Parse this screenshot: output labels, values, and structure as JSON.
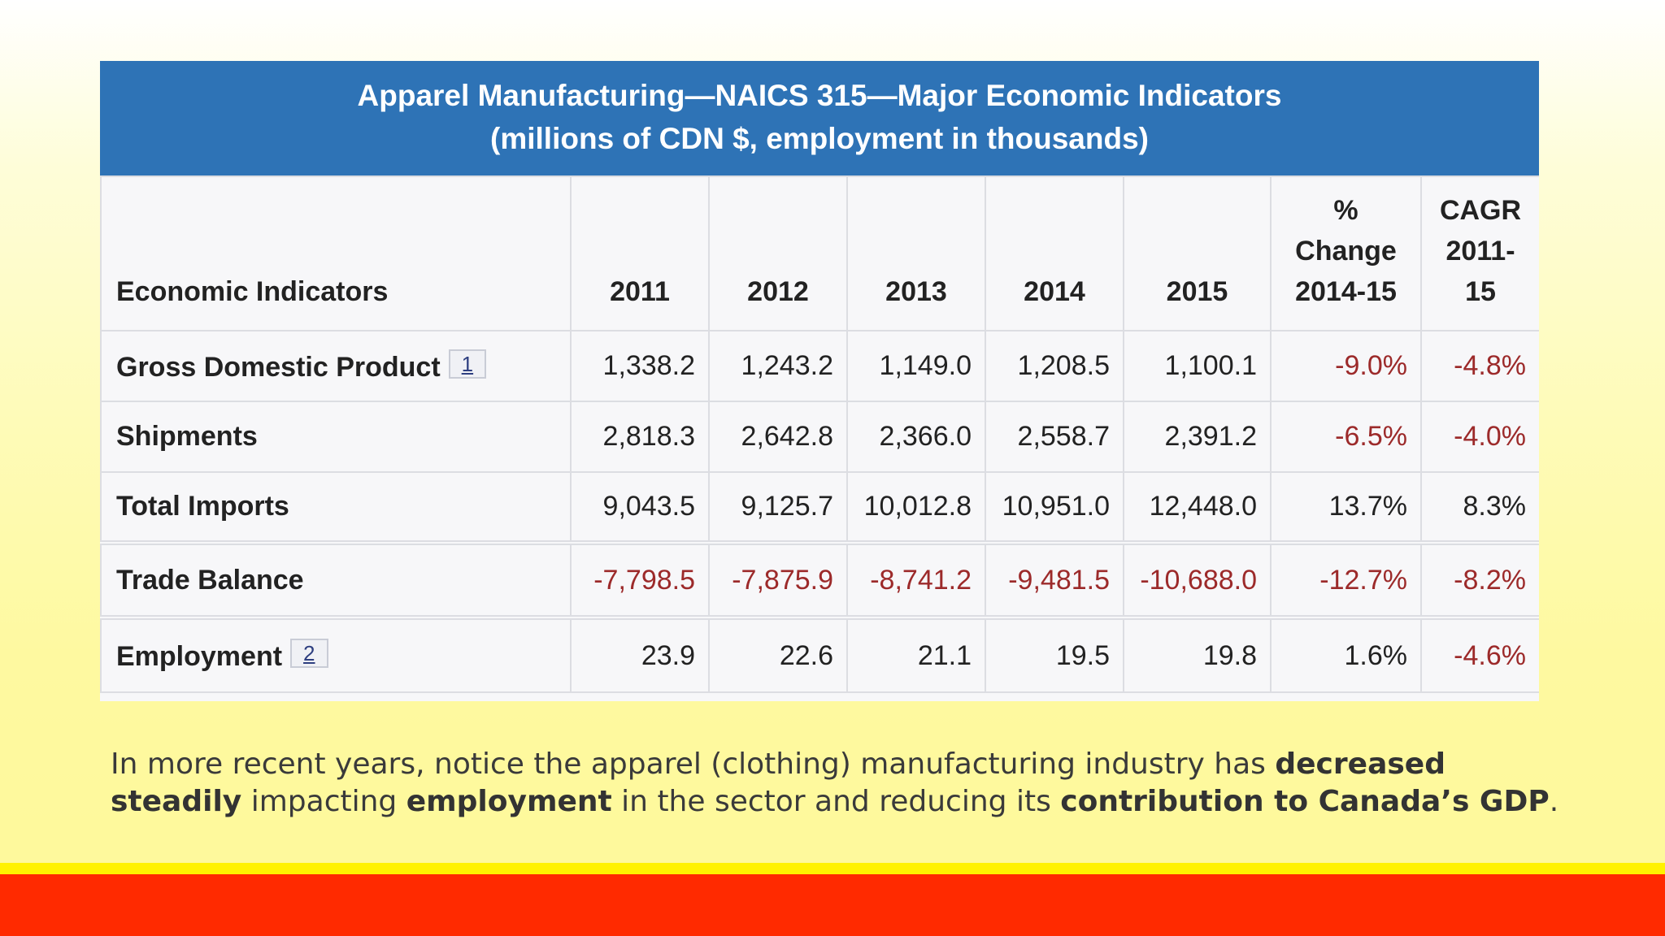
{
  "table": {
    "title_line1": "Apparel Manufacturing—NAICS 315—Major Economic Indicators",
    "title_line2": "(millions of CDN $, employment in thousands)",
    "headers": {
      "indicator": "Economic Indicators",
      "y2011": "2011",
      "y2012": "2012",
      "y2013": "2013",
      "y2014": "2014",
      "y2015": "2015",
      "change_line1": "%",
      "change_line2": "Change",
      "change_line3": "2014-15",
      "cagr_line1": "CAGR",
      "cagr_line2": "2011-",
      "cagr_line3": "15"
    },
    "rows": [
      {
        "label": "Gross Domestic Product",
        "footnote": "1",
        "v2011": "1,338.2",
        "v2012": "1,243.2",
        "v2013": "1,149.0",
        "v2014": "1,208.5",
        "v2015": "1,100.1",
        "change": "-9.0%",
        "cagr": "-4.8%"
      },
      {
        "label": "Shipments",
        "v2011": "2,818.3",
        "v2012": "2,642.8",
        "v2013": "2,366.0",
        "v2014": "2,558.7",
        "v2015": "2,391.2",
        "change": "-6.5%",
        "cagr": "-4.0%"
      },
      {
        "label": "Total Imports",
        "v2011": "9,043.5",
        "v2012": "9,125.7",
        "v2013": "10,012.8",
        "v2014": "10,951.0",
        "v2015": "12,448.0",
        "change": "13.7%",
        "cagr": "8.3%"
      },
      {
        "label": "Trade Balance",
        "v2011": "-7,798.5",
        "v2012": "-7,875.9",
        "v2013": "-8,741.2",
        "v2014": "-9,481.5",
        "v2015": "-10,688.0",
        "change": "-12.7%",
        "cagr": "-8.2%"
      },
      {
        "label": "Employment",
        "footnote": "2",
        "v2011": "23.9",
        "v2012": "22.6",
        "v2013": "21.1",
        "v2014": "19.5",
        "v2015": "19.8",
        "change": "1.6%",
        "cagr": "-4.6%"
      }
    ]
  },
  "caption": {
    "part1": "In more recent years, notice the apparel (clothing) manufacturing industry has ",
    "bold1": "decreased steadily",
    "part2": " impacting ",
    "bold2": "employment",
    "part3": " in the sector and reducing its ",
    "bold3": "contribution to Canada’s GDP",
    "part4": "."
  },
  "colors": {
    "header_blue": "#2e73b6",
    "negative_red": "#9c2a2a",
    "bar_yellow": "#fff200",
    "bar_red": "#ff2a00"
  }
}
